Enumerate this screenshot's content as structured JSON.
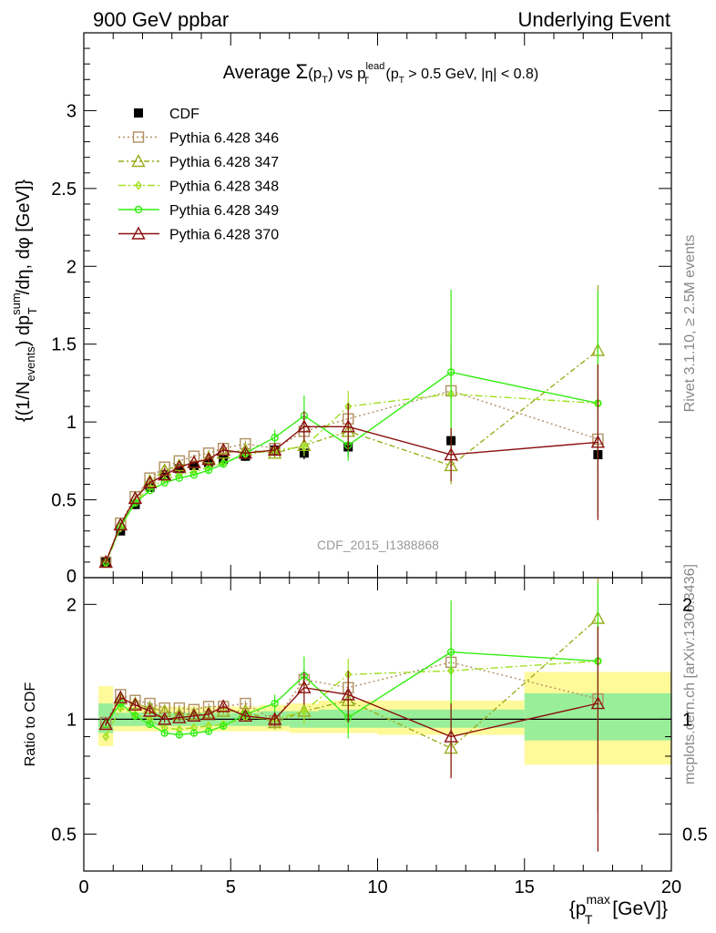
{
  "header": {
    "left": "900 GeV ppbar",
    "right": "Underlying Event"
  },
  "side_labels": {
    "rivet": "Rivet 3.1.10, ≥ 2.5M events",
    "mcplots": "mcplots.cern.ch [arXiv:1306.3436]"
  },
  "watermark": "CDF_2015_I1388868",
  "chart_data": [
    {
      "type": "line",
      "title": {
        "pre": "Average ",
        "sigma": "Σ",
        "p": "(p",
        "T": "T",
        "close": ")",
        "vs": " vs ",
        "pt": "p",
        "sup": "lead",
        "sub": "T",
        "cut": " (p",
        "cutsub": "T",
        "cut2": " > 0.5 GeV, |η| < 0.8)"
      },
      "ylabel": {
        "a": "{(1/N",
        "asub": "events",
        "b": ") dp",
        "bsup": "sum",
        "bsub": "T",
        "c": "/dη, dφ [GeV]}"
      },
      "ylim": [
        0,
        3.5
      ],
      "xlim": [
        0,
        20
      ],
      "yticks": [
        "0.5",
        "1",
        "1.5",
        "2",
        "2.5",
        "3"
      ],
      "ytick_values": [
        0.5,
        1,
        1.5,
        2,
        2.5,
        3
      ],
      "bottom_tick_label": "0",
      "legend": {
        "placement": "top-left"
      },
      "x": [
        0.75,
        1.25,
        1.75,
        2.25,
        2.75,
        3.25,
        3.75,
        4.25,
        4.75,
        5.5,
        6.5,
        7.5,
        9.0,
        12.5,
        17.5
      ],
      "data": {
        "name": "CDF",
        "values": [
          0.1,
          0.3,
          0.47,
          0.58,
          0.66,
          0.7,
          0.72,
          0.74,
          0.76,
          0.78,
          0.82,
          0.8,
          0.84,
          0.88,
          0.79
        ],
        "err": [
          0.01,
          0.02,
          0.03,
          0.03,
          0.03,
          0.03,
          0.03,
          0.03,
          0.03,
          0.03,
          0.04,
          0.04,
          0.06,
          0.08,
          0.1
        ]
      },
      "series": [
        {
          "name": "Pythia 6.428 346",
          "color": "#b09060",
          "marker": "square",
          "dash": "2,3",
          "values": [
            0.1,
            0.35,
            0.52,
            0.64,
            0.71,
            0.75,
            0.78,
            0.8,
            0.83,
            0.86,
            0.83,
            0.94,
            1.02,
            1.2,
            0.89
          ],
          "err": [
            0.005,
            0.01,
            0.01,
            0.01,
            0.01,
            0.01,
            0.01,
            0.02,
            0.02,
            0.02,
            0.03,
            0.06,
            0.1,
            0.3,
            0.5
          ]
        },
        {
          "name": "Pythia 6.428 347",
          "color": "#9aac1c",
          "marker": "triangle",
          "dash": "6,3,2,3",
          "values": [
            0.1,
            0.34,
            0.51,
            0.62,
            0.69,
            0.72,
            0.74,
            0.77,
            0.8,
            0.82,
            0.8,
            0.85,
            0.94,
            0.72,
            1.46
          ],
          "err": [
            0.005,
            0.01,
            0.01,
            0.01,
            0.01,
            0.01,
            0.01,
            0.02,
            0.02,
            0.02,
            0.03,
            0.05,
            0.1,
            0.12,
            0.42
          ]
        },
        {
          "name": "Pythia 6.428 348",
          "color": "#a0e020",
          "marker": "diamond",
          "dash": "8,3,2,3",
          "values": [
            0.09,
            0.32,
            0.49,
            0.58,
            0.63,
            0.66,
            0.68,
            0.71,
            0.74,
            0.79,
            0.82,
            0.84,
            1.1,
            1.18,
            1.12
          ],
          "err": [
            0.005,
            0.01,
            0.01,
            0.01,
            0.01,
            0.01,
            0.01,
            0.02,
            0.02,
            0.02,
            0.03,
            0.06,
            0.1,
            0.25,
            0.4
          ]
        },
        {
          "name": "Pythia 6.428 349",
          "color": "#33ee11",
          "marker": "circle",
          "dash": "",
          "values": [
            0.1,
            0.33,
            0.48,
            0.56,
            0.61,
            0.64,
            0.66,
            0.69,
            0.73,
            0.8,
            0.9,
            1.04,
            0.85,
            1.32,
            1.12
          ],
          "err": [
            0.005,
            0.01,
            0.01,
            0.01,
            0.01,
            0.01,
            0.01,
            0.02,
            0.02,
            0.03,
            0.05,
            0.13,
            0.1,
            0.53,
            0.72
          ]
        },
        {
          "name": "Pythia 6.428 370",
          "color": "#8b1010",
          "marker": "triangle",
          "dash": "",
          "values": [
            0.1,
            0.34,
            0.51,
            0.61,
            0.66,
            0.71,
            0.74,
            0.76,
            0.82,
            0.8,
            0.82,
            0.97,
            0.97,
            0.79,
            0.87
          ],
          "err": [
            0.005,
            0.01,
            0.01,
            0.01,
            0.01,
            0.01,
            0.01,
            0.02,
            0.02,
            0.02,
            0.04,
            0.1,
            0.15,
            0.17,
            0.5
          ]
        }
      ]
    },
    {
      "type": "line",
      "ylabel": "Ratio to CDF",
      "ylim": [
        0.4,
        2.35
      ],
      "ylog": true,
      "xlabel": {
        "a": "{p",
        "asup": "max",
        "asub": "T",
        "b": " [GeV]}"
      },
      "xticks": [
        "0",
        "5",
        "10",
        "15",
        "20"
      ],
      "xtick_values": [
        0,
        5,
        10,
        15,
        20
      ],
      "yticks": [
        "0.5",
        "1",
        "2"
      ],
      "ytick_values": [
        0.5,
        1,
        2
      ],
      "bins": [
        [
          0.5,
          1.0
        ],
        [
          1.0,
          1.5
        ],
        [
          1.5,
          2.0
        ],
        [
          2.0,
          2.5
        ],
        [
          2.5,
          3.0
        ],
        [
          3.0,
          3.5
        ],
        [
          3.5,
          4.0
        ],
        [
          4.0,
          4.5
        ],
        [
          4.5,
          5.0
        ],
        [
          5.0,
          6.0
        ],
        [
          6.0,
          7.0
        ],
        [
          7.0,
          8.0
        ],
        [
          8.0,
          10.0
        ],
        [
          10.0,
          15.0
        ],
        [
          15.0,
          20.0
        ]
      ],
      "band_stat": [
        [
          0.92,
          1.1
        ],
        [
          0.96,
          1.04
        ],
        [
          0.96,
          1.04
        ],
        [
          0.96,
          1.04
        ],
        [
          0.96,
          1.04
        ],
        [
          0.96,
          1.04
        ],
        [
          0.96,
          1.04
        ],
        [
          0.96,
          1.04
        ],
        [
          0.96,
          1.04
        ],
        [
          0.96,
          1.04
        ],
        [
          0.96,
          1.05
        ],
        [
          0.95,
          1.05
        ],
        [
          0.95,
          1.06
        ],
        [
          0.95,
          1.06
        ],
        [
          0.88,
          1.17
        ]
      ],
      "band_tot": [
        [
          0.85,
          1.22
        ],
        [
          0.93,
          1.08
        ],
        [
          0.93,
          1.08
        ],
        [
          0.93,
          1.08
        ],
        [
          0.93,
          1.08
        ],
        [
          0.93,
          1.08
        ],
        [
          0.93,
          1.08
        ],
        [
          0.93,
          1.08
        ],
        [
          0.93,
          1.08
        ],
        [
          0.93,
          1.08
        ],
        [
          0.93,
          1.09
        ],
        [
          0.92,
          1.1
        ],
        [
          0.92,
          1.12
        ],
        [
          0.91,
          1.12
        ],
        [
          0.76,
          1.33
        ]
      ],
      "series": [
        {
          "values": [
            0.98,
            1.16,
            1.12,
            1.1,
            1.07,
            1.07,
            1.06,
            1.08,
            1.08,
            1.1,
            0.99,
            1.27,
            1.21,
            1.41,
            1.13
          ],
          "err": [
            0.01,
            0.02,
            0.02,
            0.02,
            0.02,
            0.02,
            0.02,
            0.02,
            0.02,
            0.02,
            0.04,
            0.08,
            0.13,
            0.3,
            0.55
          ]
        },
        {
          "values": [
            0.97,
            1.13,
            1.1,
            1.07,
            1.05,
            1.03,
            1.03,
            1.04,
            1.05,
            1.05,
            0.98,
            1.05,
            1.12,
            0.84,
            1.84
          ],
          "err": [
            0.01,
            0.02,
            0.02,
            0.02,
            0.02,
            0.02,
            0.02,
            0.02,
            0.02,
            0.02,
            0.04,
            0.07,
            0.12,
            0.13,
            0.5
          ]
        },
        {
          "values": [
            0.9,
            1.07,
            1.03,
            1.0,
            0.95,
            0.94,
            0.95,
            0.96,
            0.97,
            1.01,
            1.0,
            1.05,
            1.31,
            1.34,
            1.42
          ],
          "err": [
            0.01,
            0.02,
            0.02,
            0.02,
            0.02,
            0.02,
            0.02,
            0.02,
            0.02,
            0.02,
            0.04,
            0.08,
            0.13,
            0.3,
            0.5
          ]
        },
        {
          "values": [
            0.97,
            1.1,
            1.02,
            0.97,
            0.92,
            0.91,
            0.92,
            0.93,
            0.96,
            1.03,
            1.1,
            1.3,
            1.01,
            1.5,
            1.42
          ],
          "err": [
            0.01,
            0.02,
            0.02,
            0.02,
            0.02,
            0.02,
            0.02,
            0.02,
            0.02,
            0.03,
            0.06,
            0.16,
            0.12,
            0.55,
            0.85
          ]
        },
        {
          "values": [
            0.97,
            1.14,
            1.09,
            1.05,
            1.0,
            1.01,
            1.02,
            1.03,
            1.08,
            1.02,
            1.0,
            1.21,
            1.16,
            0.9,
            1.1
          ],
          "err": [
            0.01,
            0.02,
            0.02,
            0.02,
            0.02,
            0.02,
            0.02,
            0.02,
            0.02,
            0.02,
            0.04,
            0.12,
            0.18,
            0.2,
            0.65
          ]
        }
      ]
    }
  ]
}
